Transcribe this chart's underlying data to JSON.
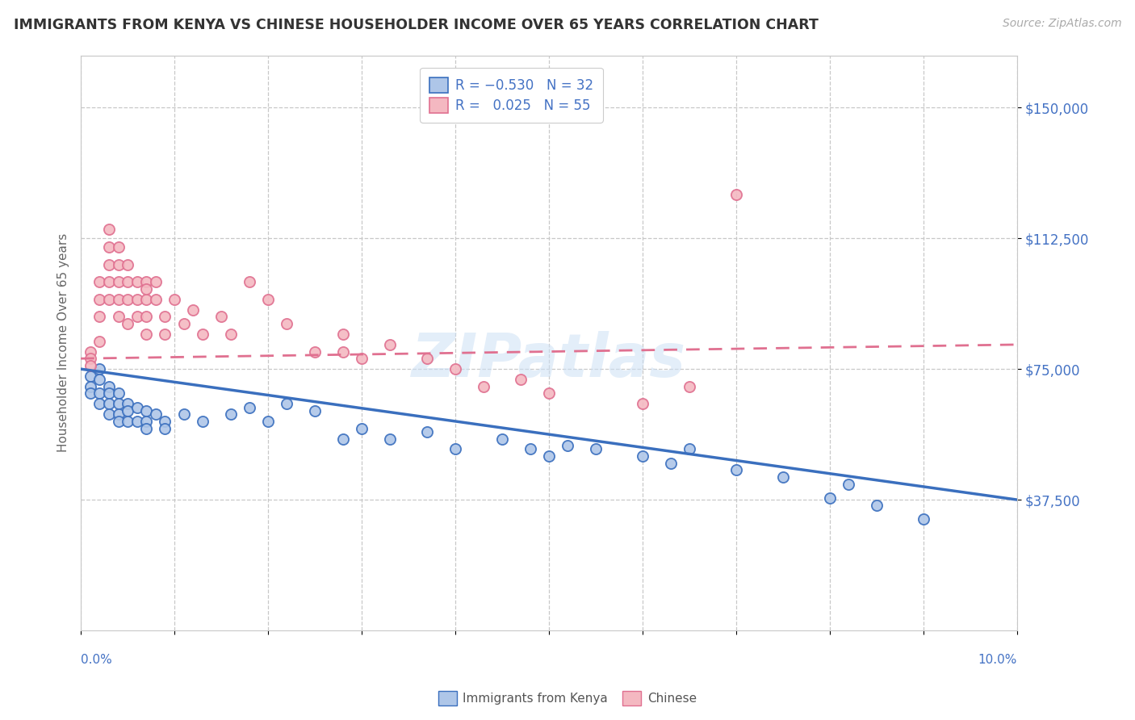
{
  "title": "IMMIGRANTS FROM KENYA VS CHINESE HOUSEHOLDER INCOME OVER 65 YEARS CORRELATION CHART",
  "source": "Source: ZipAtlas.com",
  "ylabel": "Householder Income Over 65 years",
  "xlim": [
    0.0,
    0.1
  ],
  "ylim": [
    0,
    165000
  ],
  "yticks": [
    37500,
    75000,
    112500,
    150000
  ],
  "ytick_labels": [
    "$37,500",
    "$75,000",
    "$112,500",
    "$150,000"
  ],
  "xticks": [
    0.0,
    0.01,
    0.02,
    0.03,
    0.04,
    0.05,
    0.06,
    0.07,
    0.08,
    0.09,
    0.1
  ],
  "kenya_color": "#aec6e8",
  "chinese_color": "#f4b8c1",
  "kenya_line_color": "#3a6fbe",
  "chinese_line_color": "#e07090",
  "watermark": "ZIPatlas",
  "background_color": "#ffffff",
  "grid_color": "#c8c8c8",
  "kenya_x": [
    0.001,
    0.001,
    0.001,
    0.002,
    0.002,
    0.002,
    0.002,
    0.003,
    0.003,
    0.003,
    0.003,
    0.004,
    0.004,
    0.004,
    0.004,
    0.005,
    0.005,
    0.005,
    0.006,
    0.006,
    0.007,
    0.007,
    0.007,
    0.008,
    0.009,
    0.009,
    0.011,
    0.013,
    0.016,
    0.018,
    0.02,
    0.022,
    0.025,
    0.028,
    0.03,
    0.033,
    0.037,
    0.04,
    0.045,
    0.048,
    0.05,
    0.052,
    0.055,
    0.06,
    0.063,
    0.065,
    0.07,
    0.075,
    0.08,
    0.082,
    0.085,
    0.09
  ],
  "kenya_y": [
    73000,
    70000,
    68000,
    75000,
    72000,
    68000,
    65000,
    70000,
    68000,
    65000,
    62000,
    68000,
    65000,
    62000,
    60000,
    65000,
    63000,
    60000,
    64000,
    60000,
    63000,
    60000,
    58000,
    62000,
    60000,
    58000,
    62000,
    60000,
    62000,
    64000,
    60000,
    65000,
    63000,
    55000,
    58000,
    55000,
    57000,
    52000,
    55000,
    52000,
    50000,
    53000,
    52000,
    50000,
    48000,
    52000,
    46000,
    44000,
    38000,
    42000,
    36000,
    32000
  ],
  "chinese_x": [
    0.001,
    0.001,
    0.001,
    0.002,
    0.002,
    0.002,
    0.002,
    0.003,
    0.003,
    0.003,
    0.003,
    0.003,
    0.004,
    0.004,
    0.004,
    0.004,
    0.004,
    0.005,
    0.005,
    0.005,
    0.005,
    0.006,
    0.006,
    0.006,
    0.007,
    0.007,
    0.007,
    0.007,
    0.007,
    0.008,
    0.008,
    0.009,
    0.009,
    0.01,
    0.011,
    0.012,
    0.013,
    0.015,
    0.016,
    0.018,
    0.02,
    0.022,
    0.025,
    0.028,
    0.028,
    0.03,
    0.033,
    0.037,
    0.04,
    0.043,
    0.047,
    0.05,
    0.06,
    0.065,
    0.07
  ],
  "chinese_y": [
    80000,
    78000,
    76000,
    83000,
    90000,
    95000,
    100000,
    110000,
    115000,
    105000,
    100000,
    95000,
    105000,
    110000,
    100000,
    95000,
    90000,
    105000,
    100000,
    95000,
    88000,
    100000,
    95000,
    90000,
    100000,
    95000,
    90000,
    85000,
    98000,
    100000,
    95000,
    90000,
    85000,
    95000,
    88000,
    92000,
    85000,
    90000,
    85000,
    100000,
    95000,
    88000,
    80000,
    85000,
    80000,
    78000,
    82000,
    78000,
    75000,
    70000,
    72000,
    68000,
    65000,
    70000,
    125000
  ],
  "kenya_line_y0": 75000,
  "kenya_line_y1": 37500,
  "chinese_line_y0": 78000,
  "chinese_line_y1": 82000
}
